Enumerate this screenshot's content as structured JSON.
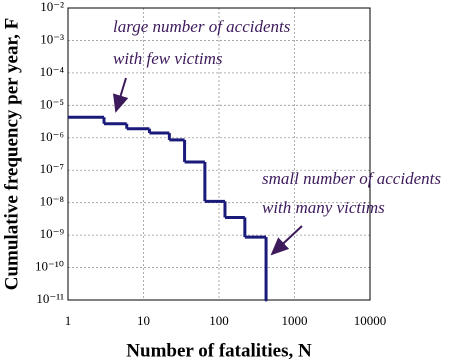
{
  "chart_data": {
    "type": "step",
    "xlabel": "Number of fatalities, N",
    "ylabel": "Cumulative frequency per year, F",
    "x": [
      1,
      3,
      6,
      12,
      22,
      35,
      65,
      120,
      220,
      420
    ],
    "values": [
      4.3e-06,
      2.7e-06,
      1.9e-06,
      1.4e-06,
      8.6e-07,
      1.8e-07,
      1.1e-08,
      3.5e-09,
      8.7e-10,
      1e-11
    ],
    "color": "#1a1a7a",
    "xlim": [
      1,
      10000
    ],
    "ylim": [
      1e-11,
      0.01
    ],
    "xticks": [
      1,
      10,
      100,
      1000,
      10000
    ],
    "yticks": [
      {
        "value": 1e-11,
        "label": "10⁻¹¹"
      },
      {
        "value": 1e-10,
        "label": "10⁻¹⁰"
      },
      {
        "value": 1e-09,
        "label": "10⁻⁹"
      },
      {
        "value": 1e-08,
        "label": "10⁻⁸"
      },
      {
        "value": 1e-07,
        "label": "10⁻⁷"
      },
      {
        "value": 1e-06,
        "label": "10⁻⁶"
      },
      {
        "value": 1e-05,
        "label": "10⁻⁵"
      },
      {
        "value": 0.0001,
        "label": "10⁻⁴"
      },
      {
        "value": 0.001,
        "label": "10⁻³"
      },
      {
        "value": 0.01,
        "label": "10⁻²"
      }
    ],
    "xscale": "log",
    "yscale": "log",
    "grid": true,
    "annotations": [
      "large number of accidents",
      "with few victims",
      "small number of accidents",
      "with many victims"
    ]
  }
}
